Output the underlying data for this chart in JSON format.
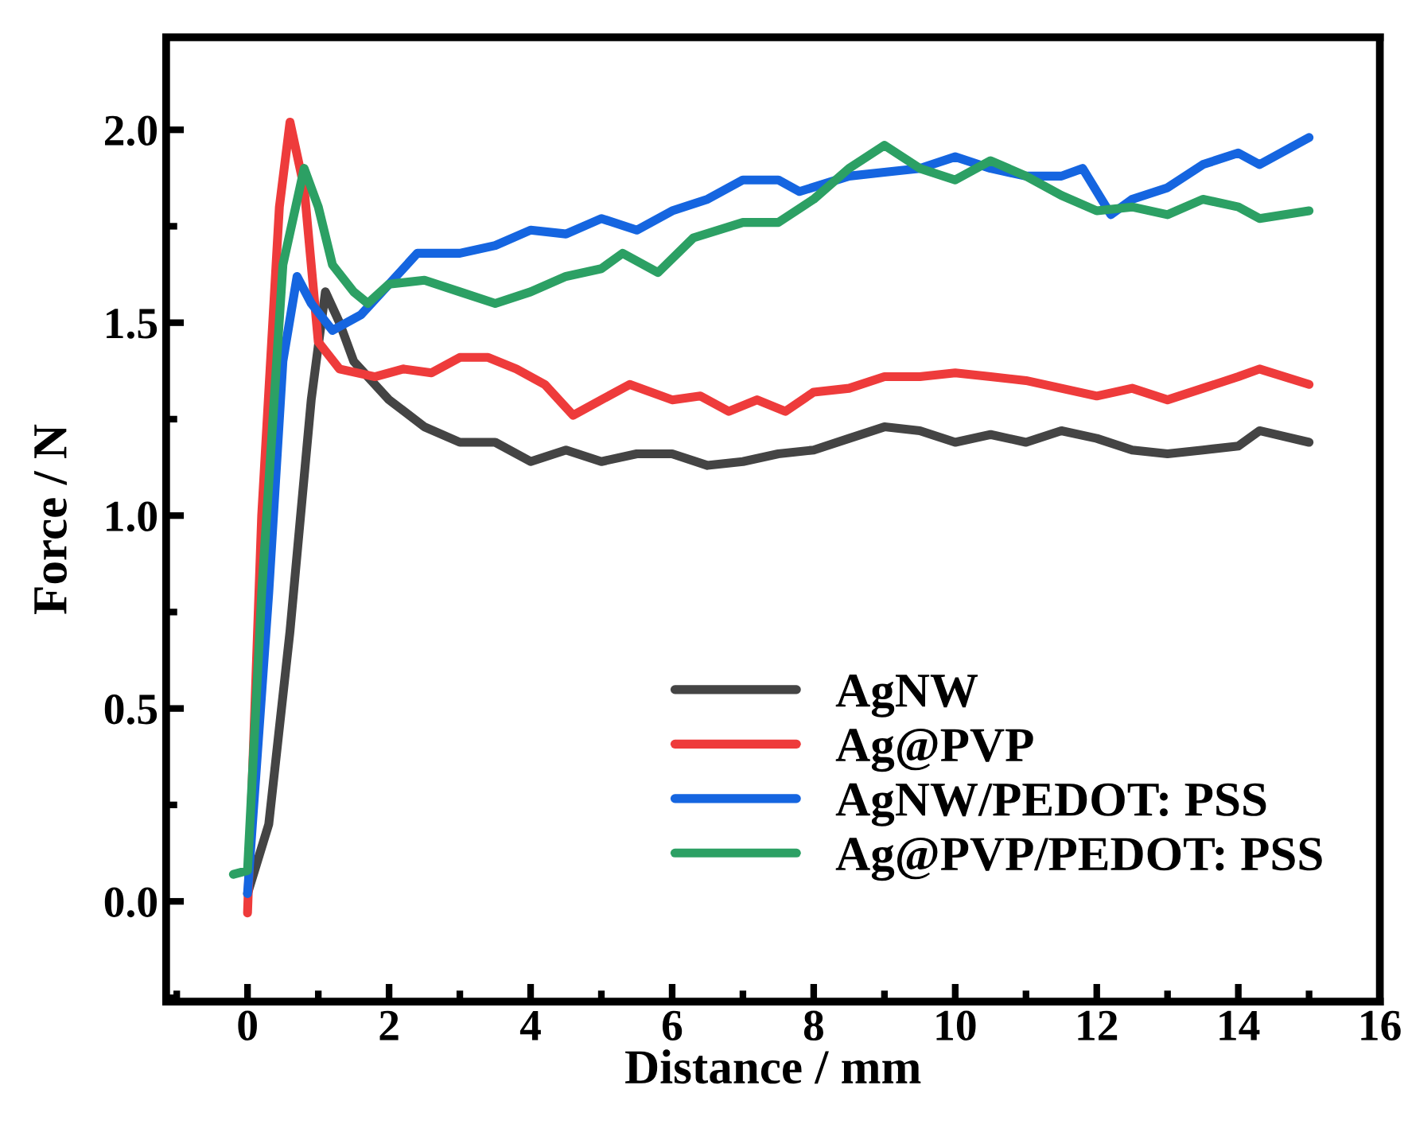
{
  "chart_data": {
    "type": "line",
    "xlabel": "Distance / mm",
    "ylabel": "Force / N",
    "xlim": [
      -1.15,
      16
    ],
    "ylim": [
      -0.26,
      2.24
    ],
    "xticks": [
      0,
      2,
      4,
      6,
      8,
      10,
      12,
      14,
      16
    ],
    "yticks": [
      {
        "value": 0,
        "label": "0.0"
      },
      0.5,
      {
        "value": 1,
        "label": "1.0"
      },
      1.5,
      {
        "value": 2,
        "label": "2.0"
      }
    ],
    "grid": false,
    "legend": "bottom right",
    "marker": "none",
    "line_style": "solid",
    "series": [
      {
        "name": "AgNW",
        "color": "#444444",
        "x": [
          0,
          0.3,
          0.6,
          0.9,
          1.1,
          1.3,
          1.5,
          2,
          2.5,
          3,
          3.5,
          4,
          4.5,
          5,
          5.5,
          6,
          6.5,
          7,
          7.5,
          8,
          8.5,
          9,
          9.5,
          10,
          10.5,
          11,
          11.5,
          12,
          12.5,
          13,
          13.5,
          14,
          14.3,
          15
        ],
        "values": [
          0.02,
          0.2,
          0.7,
          1.3,
          1.58,
          1.5,
          1.4,
          1.3,
          1.23,
          1.19,
          1.19,
          1.14,
          1.17,
          1.14,
          1.16,
          1.16,
          1.13,
          1.14,
          1.16,
          1.17,
          1.2,
          1.23,
          1.22,
          1.19,
          1.21,
          1.19,
          1.22,
          1.2,
          1.17,
          1.16,
          1.17,
          1.18,
          1.22,
          1.19
        ]
      },
      {
        "name": "Ag@PVP",
        "color": "#ee3b3b",
        "x": [
          0,
          0.2,
          0.45,
          0.6,
          0.8,
          1.0,
          1.3,
          1.8,
          2.2,
          2.6,
          3,
          3.4,
          3.8,
          4.2,
          4.6,
          5,
          5.4,
          6,
          6.4,
          6.8,
          7.2,
          7.6,
          8,
          8.5,
          9,
          9.5,
          10,
          10.5,
          11,
          11.5,
          12,
          12.5,
          13,
          13.5,
          14,
          14.3,
          15
        ],
        "values": [
          -0.03,
          1.0,
          1.8,
          2.02,
          1.85,
          1.45,
          1.38,
          1.36,
          1.38,
          1.37,
          1.41,
          1.41,
          1.38,
          1.34,
          1.26,
          1.3,
          1.34,
          1.3,
          1.31,
          1.27,
          1.3,
          1.27,
          1.32,
          1.33,
          1.36,
          1.36,
          1.37,
          1.36,
          1.35,
          1.33,
          1.31,
          1.33,
          1.3,
          1.33,
          1.36,
          1.38,
          1.34
        ]
      },
      {
        "name": "AgNW/PEDOT: PSS",
        "color": "#1565e0",
        "x": [
          0,
          0.3,
          0.5,
          0.7,
          0.9,
          1.2,
          1.6,
          2,
          2.4,
          3,
          3.5,
          4,
          4.5,
          5,
          5.5,
          6,
          6.5,
          7,
          7.5,
          7.8,
          8.5,
          9,
          9.5,
          10,
          10.5,
          11,
          11.5,
          11.8,
          12.2,
          12.5,
          13,
          13.5,
          14,
          14.3,
          15
        ],
        "values": [
          0.02,
          0.8,
          1.4,
          1.62,
          1.55,
          1.48,
          1.52,
          1.6,
          1.68,
          1.68,
          1.7,
          1.74,
          1.73,
          1.77,
          1.74,
          1.79,
          1.82,
          1.87,
          1.87,
          1.84,
          1.88,
          1.89,
          1.9,
          1.93,
          1.9,
          1.88,
          1.88,
          1.9,
          1.78,
          1.82,
          1.85,
          1.91,
          1.94,
          1.91,
          1.98
        ]
      },
      {
        "name": "Ag@PVP/PEDOT: PSS",
        "color": "#2ca064",
        "x": [
          -0.2,
          0,
          0.2,
          0.5,
          0.8,
          1.0,
          1.2,
          1.5,
          1.7,
          2,
          2.5,
          3,
          3.5,
          4,
          4.5,
          5,
          5.3,
          5.8,
          6.3,
          7,
          7.5,
          8,
          8.5,
          9,
          9.5,
          10,
          10.5,
          11,
          11.5,
          12,
          12.5,
          13,
          13.5,
          14,
          14.3,
          15
        ],
        "values": [
          0.07,
          0.08,
          0.8,
          1.65,
          1.9,
          1.8,
          1.65,
          1.58,
          1.55,
          1.6,
          1.61,
          1.58,
          1.55,
          1.58,
          1.62,
          1.64,
          1.68,
          1.63,
          1.72,
          1.76,
          1.76,
          1.82,
          1.9,
          1.96,
          1.9,
          1.87,
          1.92,
          1.88,
          1.83,
          1.79,
          1.8,
          1.78,
          1.82,
          1.8,
          1.77,
          1.79
        ]
      }
    ]
  }
}
